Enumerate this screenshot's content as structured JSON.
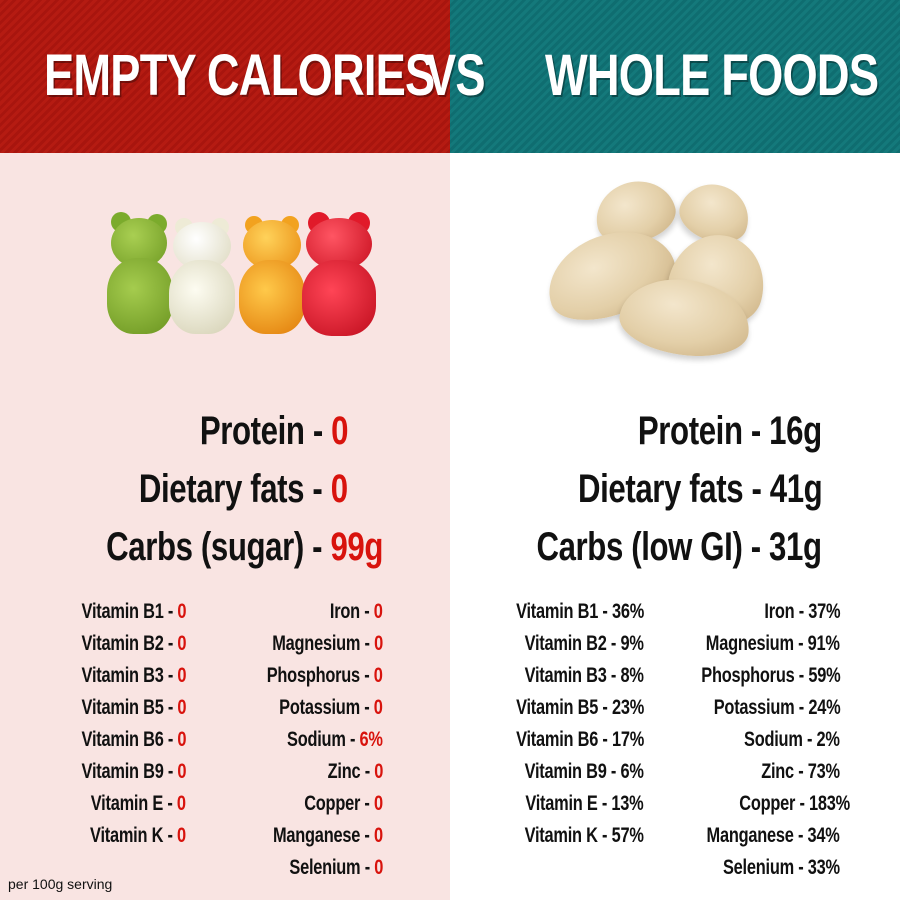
{
  "header": {
    "left_title": "EMPTY CALORIES",
    "vs": "VS",
    "right_title": "WHOLE FOODS",
    "left_color": "#b51b12",
    "right_color": "#14797b"
  },
  "empty_calories": {
    "image": "gummy-bears",
    "macros": [
      {
        "label": "Protein - ",
        "value": "0"
      },
      {
        "label": "Dietary fats - ",
        "value": "0"
      },
      {
        "label": "Carbs (sugar) - ",
        "value": "99g"
      }
    ],
    "vitamins": [
      {
        "label": "Vitamin B1 - ",
        "value": "0"
      },
      {
        "label": "Vitamin B2 - ",
        "value": "0"
      },
      {
        "label": "Vitamin B3 - ",
        "value": "0"
      },
      {
        "label": "Vitamin B5 - ",
        "value": "0"
      },
      {
        "label": "Vitamin B6 - ",
        "value": "0"
      },
      {
        "label": "Vitamin B9 - ",
        "value": "0"
      },
      {
        "label": "Vitamin E - ",
        "value": "0"
      },
      {
        "label": "Vitamin K - ",
        "value": "0"
      }
    ],
    "minerals": [
      {
        "label": "Iron - ",
        "value": "0"
      },
      {
        "label": "Magnesium - ",
        "value": "0"
      },
      {
        "label": "Phosphorus - ",
        "value": "0"
      },
      {
        "label": "Potassium - ",
        "value": "0"
      },
      {
        "label": "Sodium - ",
        "value": "6%"
      },
      {
        "label": "Zinc - ",
        "value": "0"
      },
      {
        "label": "Copper - ",
        "value": "0"
      },
      {
        "label": "Manganese - ",
        "value": "0"
      },
      {
        "label": "Selenium - ",
        "value": "0"
      }
    ],
    "footnote": "per 100g serving"
  },
  "whole_foods": {
    "image": "cashews",
    "macros": [
      {
        "label": "Protein - ",
        "value": "16g"
      },
      {
        "label": "Dietary fats - ",
        "value": "41g"
      },
      {
        "label": "Carbs (low GI) - ",
        "value": "31g"
      }
    ],
    "vitamins": [
      {
        "label": "Vitamin B1 - ",
        "value": "36%"
      },
      {
        "label": "Vitamin B2 - ",
        "value": "9%"
      },
      {
        "label": "Vitamin B3 - ",
        "value": "8%"
      },
      {
        "label": "Vitamin B5 - ",
        "value": "23%"
      },
      {
        "label": "Vitamin B6 - ",
        "value": "17%"
      },
      {
        "label": "Vitamin B9 - ",
        "value": "6%"
      },
      {
        "label": "Vitamin E - ",
        "value": "13%"
      },
      {
        "label": "Vitamin K - ",
        "value": "57%"
      }
    ],
    "minerals": [
      {
        "label": "Iron - ",
        "value": "37%"
      },
      {
        "label": "Magnesium - ",
        "value": "91%"
      },
      {
        "label": "Phosphorus - ",
        "value": "59%"
      },
      {
        "label": "Potassium - ",
        "value": "24%"
      },
      {
        "label": "Sodium - ",
        "value": "2%"
      },
      {
        "label": "Zinc - ",
        "value": "73%"
      },
      {
        "label": "Copper - ",
        "value": "183%"
      },
      {
        "label": "Manganese - ",
        "value": "34%"
      },
      {
        "label": "Selenium - ",
        "value": "33%"
      }
    ]
  }
}
